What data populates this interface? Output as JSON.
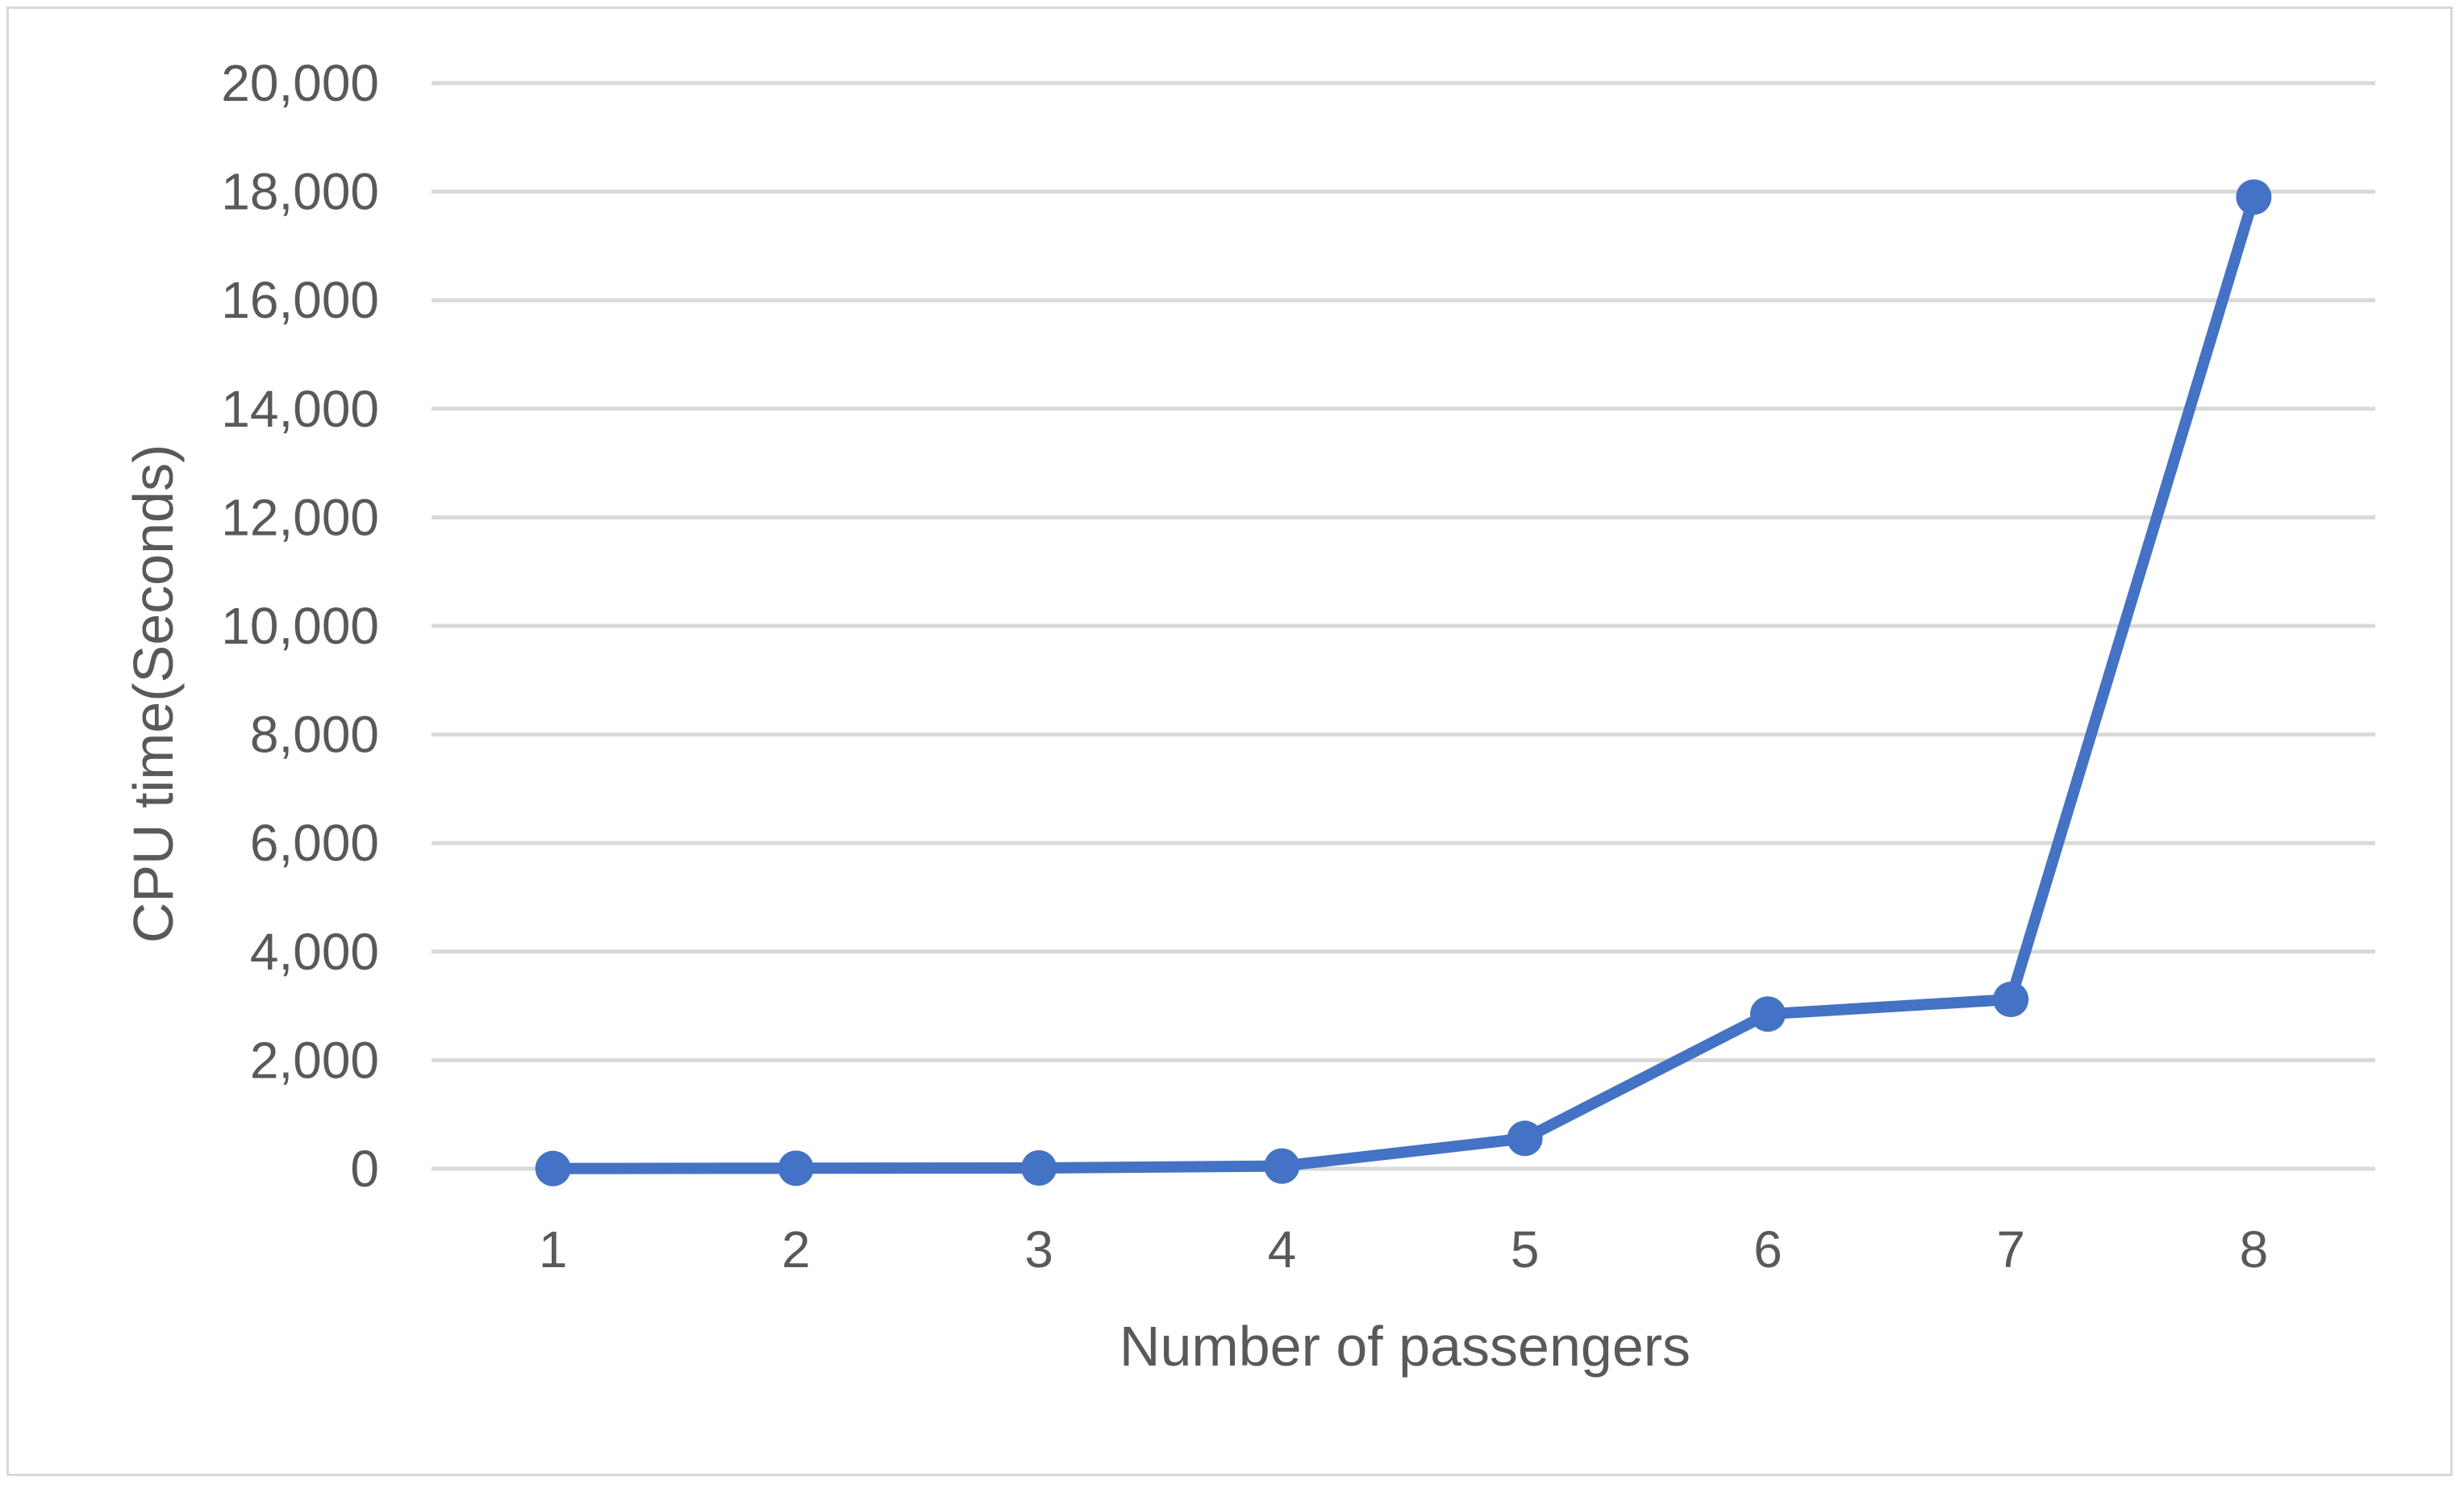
{
  "chart_data": {
    "type": "line",
    "title": "",
    "xlabel": "Number of passengers",
    "ylabel": "CPU time(Seconds)",
    "categories": [
      "1",
      "2",
      "3",
      "4",
      "5",
      "6",
      "7",
      "8"
    ],
    "series": [
      {
        "values": [
          5,
          10,
          15,
          50,
          560,
          2850,
          3120,
          17900
        ]
      }
    ],
    "ylim": [
      0,
      20000
    ],
    "yticks": [
      0,
      2000,
      4000,
      6000,
      8000,
      10000,
      12000,
      14000,
      16000,
      18000,
      20000
    ],
    "ytick_labels": [
      "0",
      "2,000",
      "4,000",
      "6,000",
      "8,000",
      "10,000",
      "12,000",
      "14,000",
      "16,000",
      "18,000",
      "20,000"
    ],
    "grid": true,
    "legend": "none",
    "colors": {
      "series": "#4472c4",
      "grid": "#d9d9d9",
      "text": "#595959",
      "border": "#d9d9d9"
    }
  }
}
